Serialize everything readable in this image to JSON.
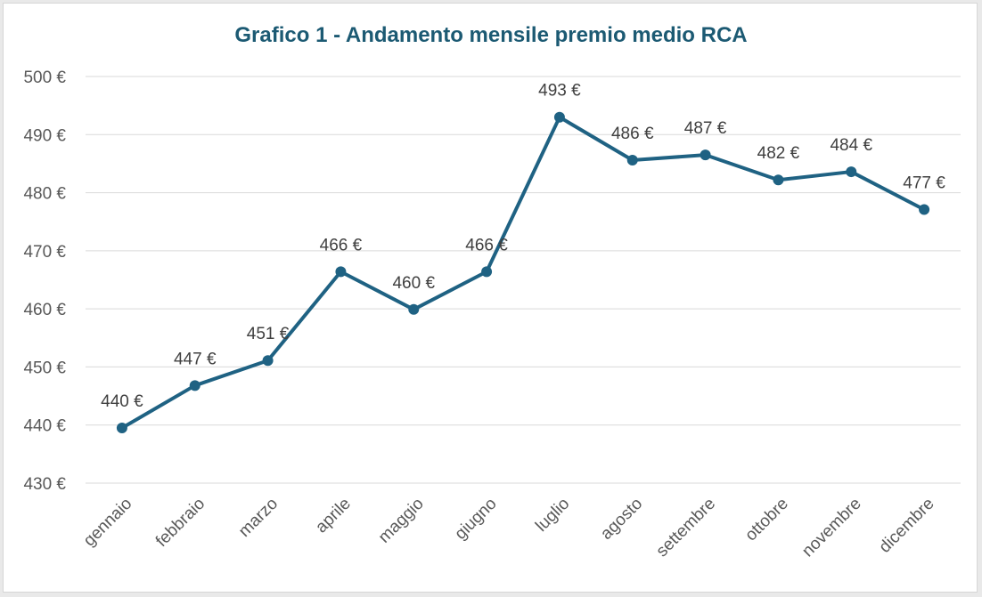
{
  "chart_data": {
    "type": "line",
    "title": "Grafico 1 - Andamento mensile premio medio RCA",
    "xlabel": "",
    "ylabel": "",
    "categories": [
      "gennaio",
      "febbraio",
      "marzo",
      "aprile",
      "maggio",
      "giugno",
      "luglio",
      "agosto",
      "settembre",
      "ottobre",
      "novembre",
      "dicembre"
    ],
    "series": [
      {
        "values": [
          439.5,
          446.8,
          451.1,
          466.4,
          459.9,
          466.4,
          493.0,
          485.6,
          486.5,
          482.2,
          483.6,
          477.1
        ],
        "data_labels": [
          "440 €",
          "447 €",
          "451 €",
          "466 €",
          "460 €",
          "466 €",
          "493 €",
          "486 €",
          "487 €",
          "482 €",
          "484 €",
          "477 €"
        ],
        "color": "#1f6283"
      }
    ],
    "ylim": [
      430,
      500
    ],
    "yticks": [
      430,
      440,
      450,
      460,
      470,
      480,
      490,
      500
    ],
    "ytick_labels": [
      "430 €",
      "440 €",
      "450 €",
      "460 €",
      "470 €",
      "480 €",
      "490 €",
      "500 €"
    ],
    "grid": true,
    "legend": "none"
  }
}
